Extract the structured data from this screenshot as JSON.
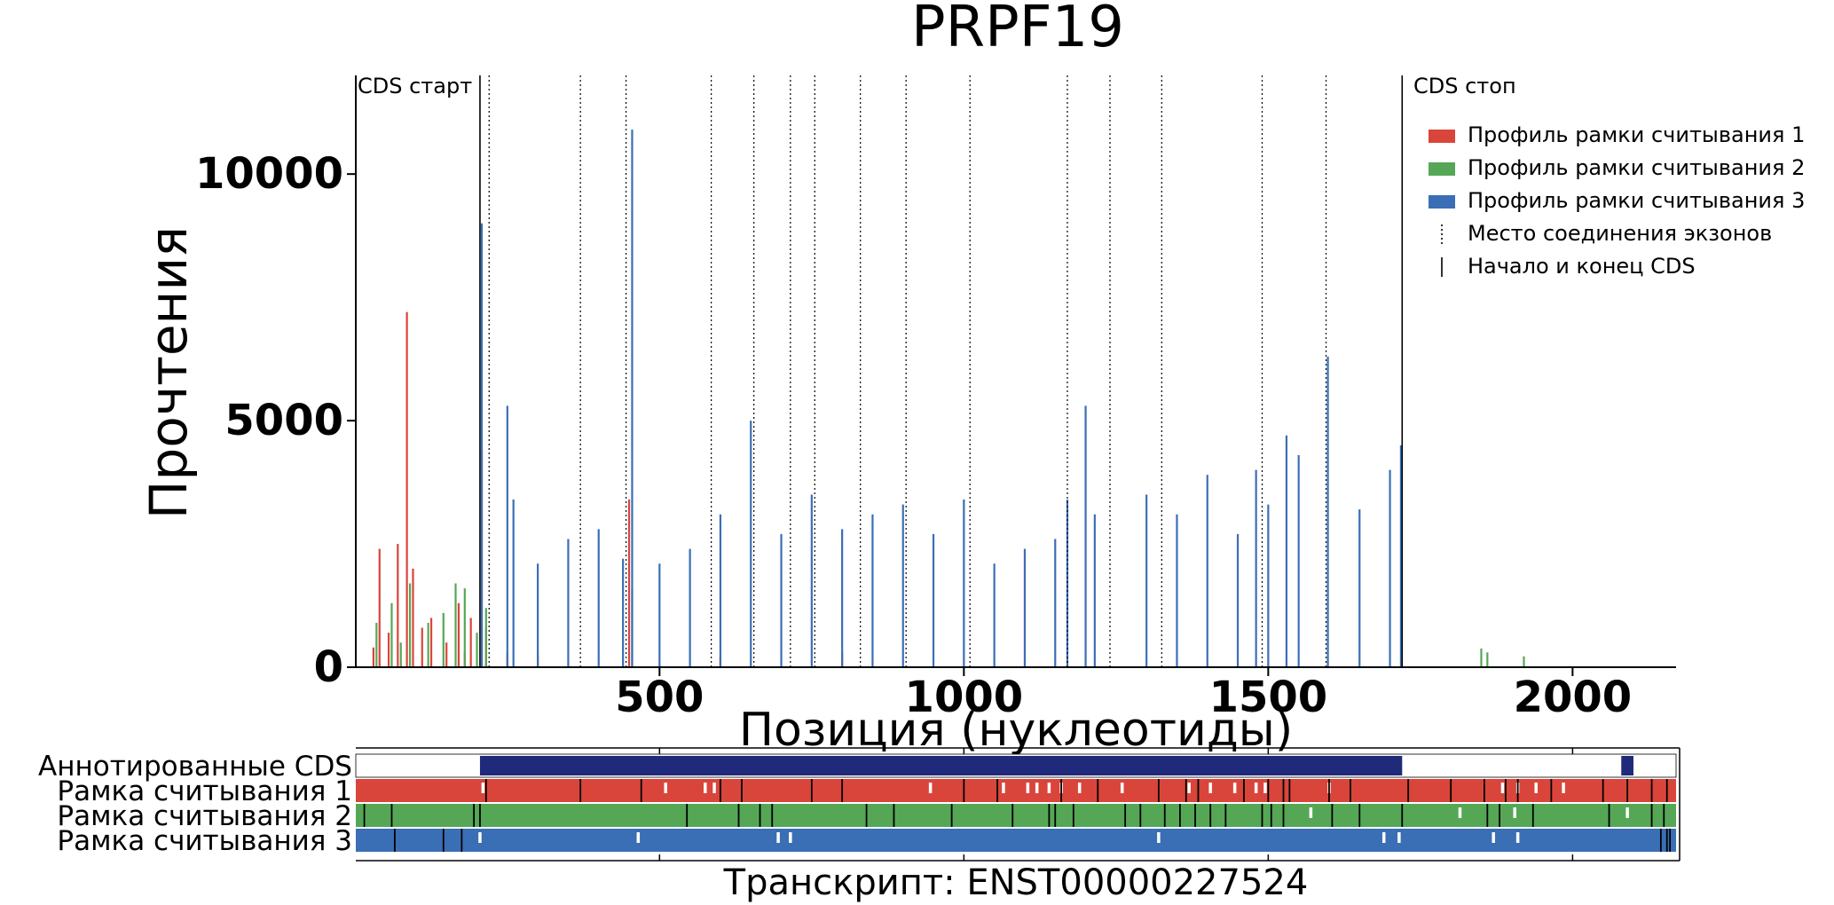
{
  "chart_data": {
    "type": "bar",
    "title": "PRPF19",
    "xlabel": "Позиция (нуклеотиды)",
    "ylabel": "Прочтения",
    "xlim": [
      1,
      2170
    ],
    "ylim": [
      0,
      12000
    ],
    "x_ticks": [
      500,
      1000,
      1500,
      2000
    ],
    "y_ticks": [
      0,
      5000,
      10000
    ],
    "cds_start": 205,
    "cds_stop": 1720,
    "cds_start_label": "CDS старт",
    "cds_stop_label": "CDS стоп",
    "exon_junctions": [
      220,
      370,
      445,
      585,
      655,
      715,
      755,
      830,
      905,
      1010,
      1170,
      1240,
      1325,
      1490,
      1595
    ],
    "legend_position": "top-right",
    "legend": [
      {
        "label": "Профиль рамки считывания 1",
        "color": "#d9453b",
        "kind": "patch"
      },
      {
        "label": "Профиль рамки считывания 2",
        "color": "#55a756",
        "kind": "patch"
      },
      {
        "label": "Профиль рамки считывания 3",
        "color": "#3a6fb5",
        "kind": "patch"
      },
      {
        "label": "Место соединения экзонов",
        "color": "#000000",
        "kind": "dotted"
      },
      {
        "label": "Начало и конец CDS",
        "color": "#000000",
        "kind": "solid"
      }
    ],
    "series": [
      {
        "name": "Профиль рамки считывания 1",
        "color": "#d9453b",
        "x": [
          30,
          40,
          55,
          70,
          85,
          95,
          110,
          125,
          150,
          170,
          180,
          190,
          208,
          215,
          250,
          300,
          450,
          600,
          800
        ],
        "values": [
          400,
          2400,
          700,
          2500,
          7200,
          2000,
          800,
          1000,
          500,
          1300,
          300,
          1000,
          4400,
          800,
          300,
          250,
          3400,
          200,
          300
        ]
      },
      {
        "name": "Профиль рамки считывания 2",
        "color": "#55a756",
        "x": [
          35,
          60,
          75,
          90,
          120,
          145,
          165,
          180,
          200,
          215,
          455,
          1850,
          1860,
          1920
        ],
        "values": [
          900,
          1300,
          500,
          1700,
          900,
          1100,
          1700,
          1600,
          700,
          1200,
          1600,
          380,
          300,
          220
        ]
      },
      {
        "name": "Профиль рамки считывания 3",
        "color": "#3a6fb5",
        "x": [
          208,
          250,
          260,
          300,
          350,
          400,
          440,
          455,
          500,
          550,
          600,
          650,
          700,
          750,
          800,
          850,
          900,
          950,
          1000,
          1050,
          1100,
          1150,
          1170,
          1200,
          1215,
          1300,
          1350,
          1400,
          1450,
          1480,
          1500,
          1530,
          1550,
          1598,
          1650,
          1700,
          1718
        ],
        "values": [
          9000,
          5300,
          3400,
          2100,
          2600,
          2800,
          2200,
          10900,
          2100,
          2400,
          3100,
          5000,
          2700,
          3500,
          2800,
          3100,
          3300,
          2700,
          3400,
          2100,
          2400,
          2600,
          3400,
          5300,
          3100,
          3500,
          3100,
          3900,
          2700,
          4000,
          3300,
          4700,
          4300,
          6300,
          3200,
          4000,
          4500
        ]
      }
    ]
  },
  "orf_tracks": [
    {
      "label": "Аннотированные CDS",
      "fill": "#ffffff",
      "blocks": [
        {
          "start": 205,
          "end": 1720
        },
        {
          "start": 2080,
          "end": 2100
        }
      ],
      "block_color": "#1f2a7a"
    },
    {
      "label": "Рамка считывания 1",
      "fill": "#d9453b",
      "starts": [
        210,
        510,
        575,
        590,
        945,
        1065,
        1105,
        1120,
        1140,
        1160,
        1190,
        1260,
        1370,
        1405,
        1445,
        1480,
        1495,
        1600,
        1885,
        1910,
        1940,
        1985
      ],
      "stops": [
        215,
        370,
        470,
        600,
        635,
        750,
        800,
        1000,
        1055,
        1160,
        1220,
        1320,
        1365,
        1385,
        1460,
        1500,
        1525,
        1535,
        1600,
        1635,
        1730,
        1800,
        1855,
        1890,
        1910,
        1965,
        2050,
        2090,
        2130,
        2155
      ]
    },
    {
      "label": "Рамка считывания 2",
      "fill": "#55a756",
      "starts": [
        1570,
        1815,
        1905,
        2090
      ],
      "stops": [
        15,
        60,
        195,
        205,
        545,
        630,
        665,
        685,
        840,
        885,
        980,
        1080,
        1140,
        1150,
        1180,
        1265,
        1290,
        1330,
        1355,
        1380,
        1405,
        1430,
        1490,
        1505,
        1525,
        1605,
        1650,
        1720,
        1860,
        1880,
        1935,
        2060,
        2130,
        2150
      ]
    },
    {
      "label": "Рамка считывания 3",
      "fill": "#3a6fb5",
      "starts": [
        205,
        465,
        695,
        715,
        1320,
        1690,
        1715,
        1870,
        1910
      ],
      "stops": [
        65,
        145,
        175,
        2145,
        2155,
        2160
      ]
    }
  ],
  "track_tick_positions": [
    500,
    1000,
    1500,
    2000
  ],
  "transcript_label": "Транскрипт: ENST00000227524"
}
